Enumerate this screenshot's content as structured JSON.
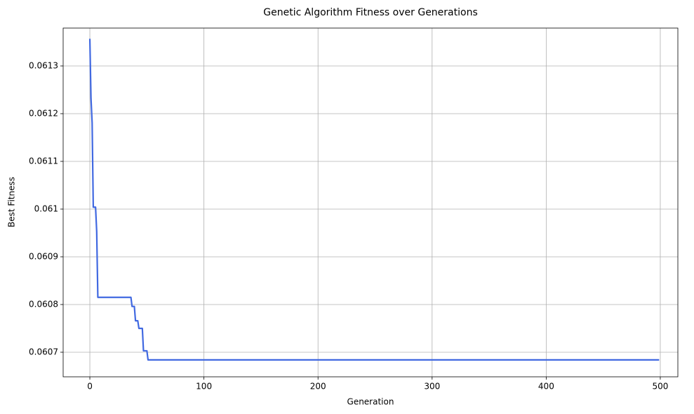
{
  "chart_data": {
    "type": "line",
    "title": "Genetic Algorithm Fitness over Generations",
    "x_label": "Generation",
    "y_label": "Best Fitness",
    "x": [
      0,
      1,
      2,
      3,
      5,
      6,
      7,
      36,
      37,
      39,
      40,
      42,
      43,
      46,
      47,
      50,
      51,
      499
    ],
    "values": [
      0.061357,
      0.061232,
      0.061181,
      0.061004,
      0.061004,
      0.060953,
      0.060815,
      0.060815,
      0.060796,
      0.060796,
      0.060766,
      0.060766,
      0.06075,
      0.06075,
      0.060703,
      0.060703,
      0.060684,
      0.060684
    ],
    "color": "#4169e1",
    "xlim": [
      -23.4,
      515.4
    ],
    "xticks": [
      0,
      100,
      200,
      300,
      400,
      500
    ],
    "ylim": [
      0.0606485,
      0.0613794
    ],
    "yticks": [
      0.0607,
      0.0608,
      0.0609,
      0.061,
      0.0611,
      0.0612,
      0.0613
    ],
    "grid": true
  }
}
